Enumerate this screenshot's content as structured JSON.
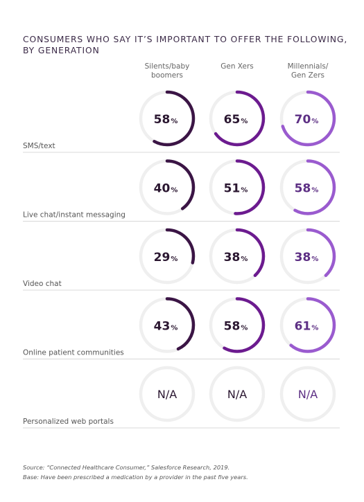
{
  "title_lines": [
    "CONSUMERS WHO SAY IT’S IMPORTANT TO OFFER THE FOLLOWING,",
    "BY GENERATION"
  ],
  "colors": {
    "track": "#efefef",
    "silents": "#3b1545",
    "genx": "#6c1b8f",
    "millennials": "#9a5bcf",
    "text_dark": "#2b1731",
    "text_purple": "#5d2f84",
    "divider": "#d8d8d8"
  },
  "chart_data": {
    "type": "donut-grid",
    "unit": "%",
    "columns": [
      {
        "name_lines": [
          "Silents/baby",
          "boomers"
        ],
        "key": "silents"
      },
      {
        "name_lines": [
          "Gen Xers"
        ],
        "key": "genx"
      },
      {
        "name_lines": [
          "Millennials/",
          "Gen Zers"
        ],
        "key": "millennials"
      }
    ],
    "rows": [
      {
        "label": "SMS/text",
        "values": [
          58,
          65,
          70
        ]
      },
      {
        "label": "Live chat/instant messaging",
        "values": [
          40,
          51,
          58
        ]
      },
      {
        "label": "Video chat",
        "values": [
          29,
          38,
          38
        ]
      },
      {
        "label": "Online patient communities",
        "values": [
          43,
          58,
          61
        ]
      },
      {
        "label": "Personalized web portals",
        "values": [
          null,
          null,
          null
        ]
      }
    ],
    "na_text": "N/A"
  },
  "source_lines": [
    "Source: “Connected Healthcare Consumer,” Salesforce Research, 2019.",
    "Base: Have been prescribed a medication by a provider in the past five years."
  ]
}
